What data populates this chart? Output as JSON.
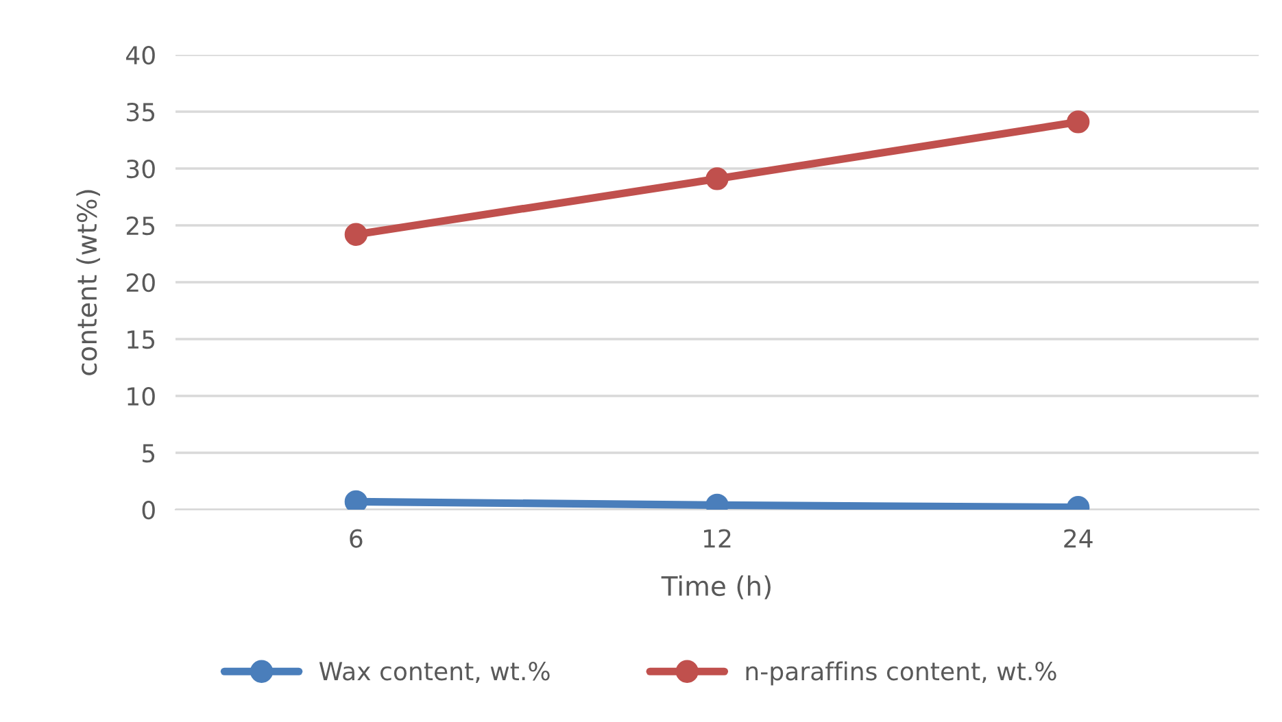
{
  "chart_data": {
    "type": "line",
    "xlabel": "Time (h)",
    "ylabel": "content (wt%)",
    "categories": [
      "6",
      "12",
      "24"
    ],
    "series": [
      {
        "name": "Wax content, wt.%",
        "color": "#4a7ebb",
        "values": [
          0.7,
          0.4,
          0.2
        ]
      },
      {
        "name": "n-paraffins content, wt.%",
        "color": "#c0504d",
        "values": [
          24.2,
          29.1,
          34.1
        ]
      }
    ],
    "ylim": [
      0,
      40
    ],
    "yticks": [
      0,
      5,
      10,
      15,
      20,
      25,
      30,
      35,
      40
    ],
    "grid": "y",
    "legend": "bottom",
    "marker": "circle",
    "line_style": "solid"
  }
}
